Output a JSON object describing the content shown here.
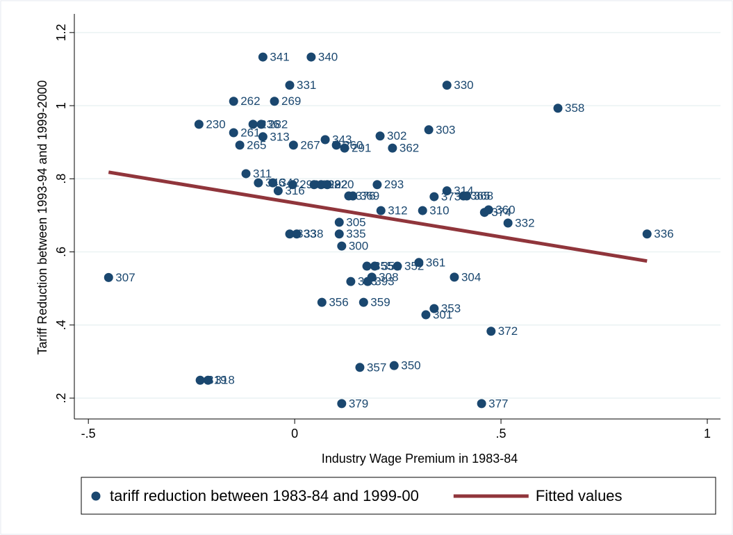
{
  "chart_data": {
    "type": "scatter",
    "xlabel": "Industry Wage Premium in 1983-84",
    "ylabel": "Tariff Reduction between 1993-94 and 1999-2000",
    "xlim": [
      -0.534,
      1.032
    ],
    "ylim": [
      0.143,
      1.251
    ],
    "xticks": [
      {
        "value": -0.5,
        "label": "-.5"
      },
      0,
      {
        "value": 0.5,
        "label": ".5"
      },
      1
    ],
    "yticks": [
      {
        "value": 0.2,
        "label": ".2"
      },
      {
        "value": 0.4,
        "label": ".4"
      },
      {
        "value": 0.6,
        "label": ".6"
      },
      {
        "value": 0.8,
        "label": ".8"
      },
      1,
      {
        "value": 1.2,
        "label": "1.2"
      }
    ],
    "grid": true,
    "legend": "bottom",
    "series": [
      {
        "name": "tariff reduction between 1983-84 and 1999-00",
        "color": "#1a476f",
        "x": [
          -0.451,
          -0.077,
          0.04,
          -0.012,
          0.369,
          -0.148,
          -0.049,
          0.638,
          -0.232,
          -0.101,
          -0.081,
          -0.148,
          -0.077,
          -0.133,
          -0.003,
          0.325,
          0.207,
          0.074,
          0.101,
          0.121,
          0.237,
          -0.118,
          -0.088,
          -0.053,
          -0.005,
          0.047,
          0.064,
          0.079,
          -0.04,
          0.2,
          0.369,
          0.131,
          0.141,
          0.338,
          0.409,
          0.417,
          0.209,
          0.31,
          0.47,
          0.46,
          0.517,
          0.108,
          -0.012,
          0.005,
          0.108,
          0.854,
          0.114,
          0.301,
          0.175,
          0.194,
          0.249,
          0.187,
          0.387,
          0.136,
          0.177,
          0.066,
          0.167,
          0.338,
          0.318,
          0.476,
          0.158,
          0.241,
          -0.229,
          -0.21,
          0.114,
          0.453
        ],
        "values": [
          0.53,
          1.133,
          1.133,
          1.056,
          1.056,
          1.012,
          1.012,
          0.993,
          0.949,
          0.949,
          0.949,
          0.926,
          0.915,
          0.892,
          0.892,
          0.934,
          0.917,
          0.907,
          0.892,
          0.884,
          0.884,
          0.814,
          0.789,
          0.789,
          0.784,
          0.784,
          0.784,
          0.784,
          0.767,
          0.784,
          0.767,
          0.753,
          0.753,
          0.751,
          0.753,
          0.753,
          0.713,
          0.713,
          0.715,
          0.708,
          0.679,
          0.681,
          0.649,
          0.649,
          0.649,
          0.649,
          0.616,
          0.571,
          0.561,
          0.561,
          0.561,
          0.531,
          0.531,
          0.519,
          0.519,
          0.462,
          0.462,
          0.445,
          0.428,
          0.383,
          0.284,
          0.289,
          0.249,
          0.249,
          0.185,
          0.185
        ],
        "labels": [
          "307",
          "341",
          "340",
          "331",
          "330",
          "262",
          "269",
          "358",
          "230",
          "236",
          "282",
          "261",
          "313",
          "265",
          "267",
          "303",
          "302",
          "343",
          "260",
          "291",
          "362",
          "311",
          "346",
          "342",
          "296",
          "298",
          "292",
          "220",
          "316",
          "293",
          "314",
          "376",
          "369",
          "373",
          "365",
          "368",
          "312",
          "310",
          "360",
          "374",
          "332",
          "305",
          "333",
          "338",
          "335",
          "336",
          "300",
          "361",
          "355",
          "351",
          "352",
          "308",
          "304",
          "363",
          "393",
          "356",
          "359",
          "353",
          "301",
          "372",
          "357",
          "350",
          "319",
          "318",
          "379",
          "377"
        ]
      },
      {
        "name": "Fitted values",
        "color": "#90353b",
        "type": "line",
        "x": [
          -0.451,
          0.854
        ],
        "values": [
          0.818,
          0.575
        ]
      }
    ]
  }
}
